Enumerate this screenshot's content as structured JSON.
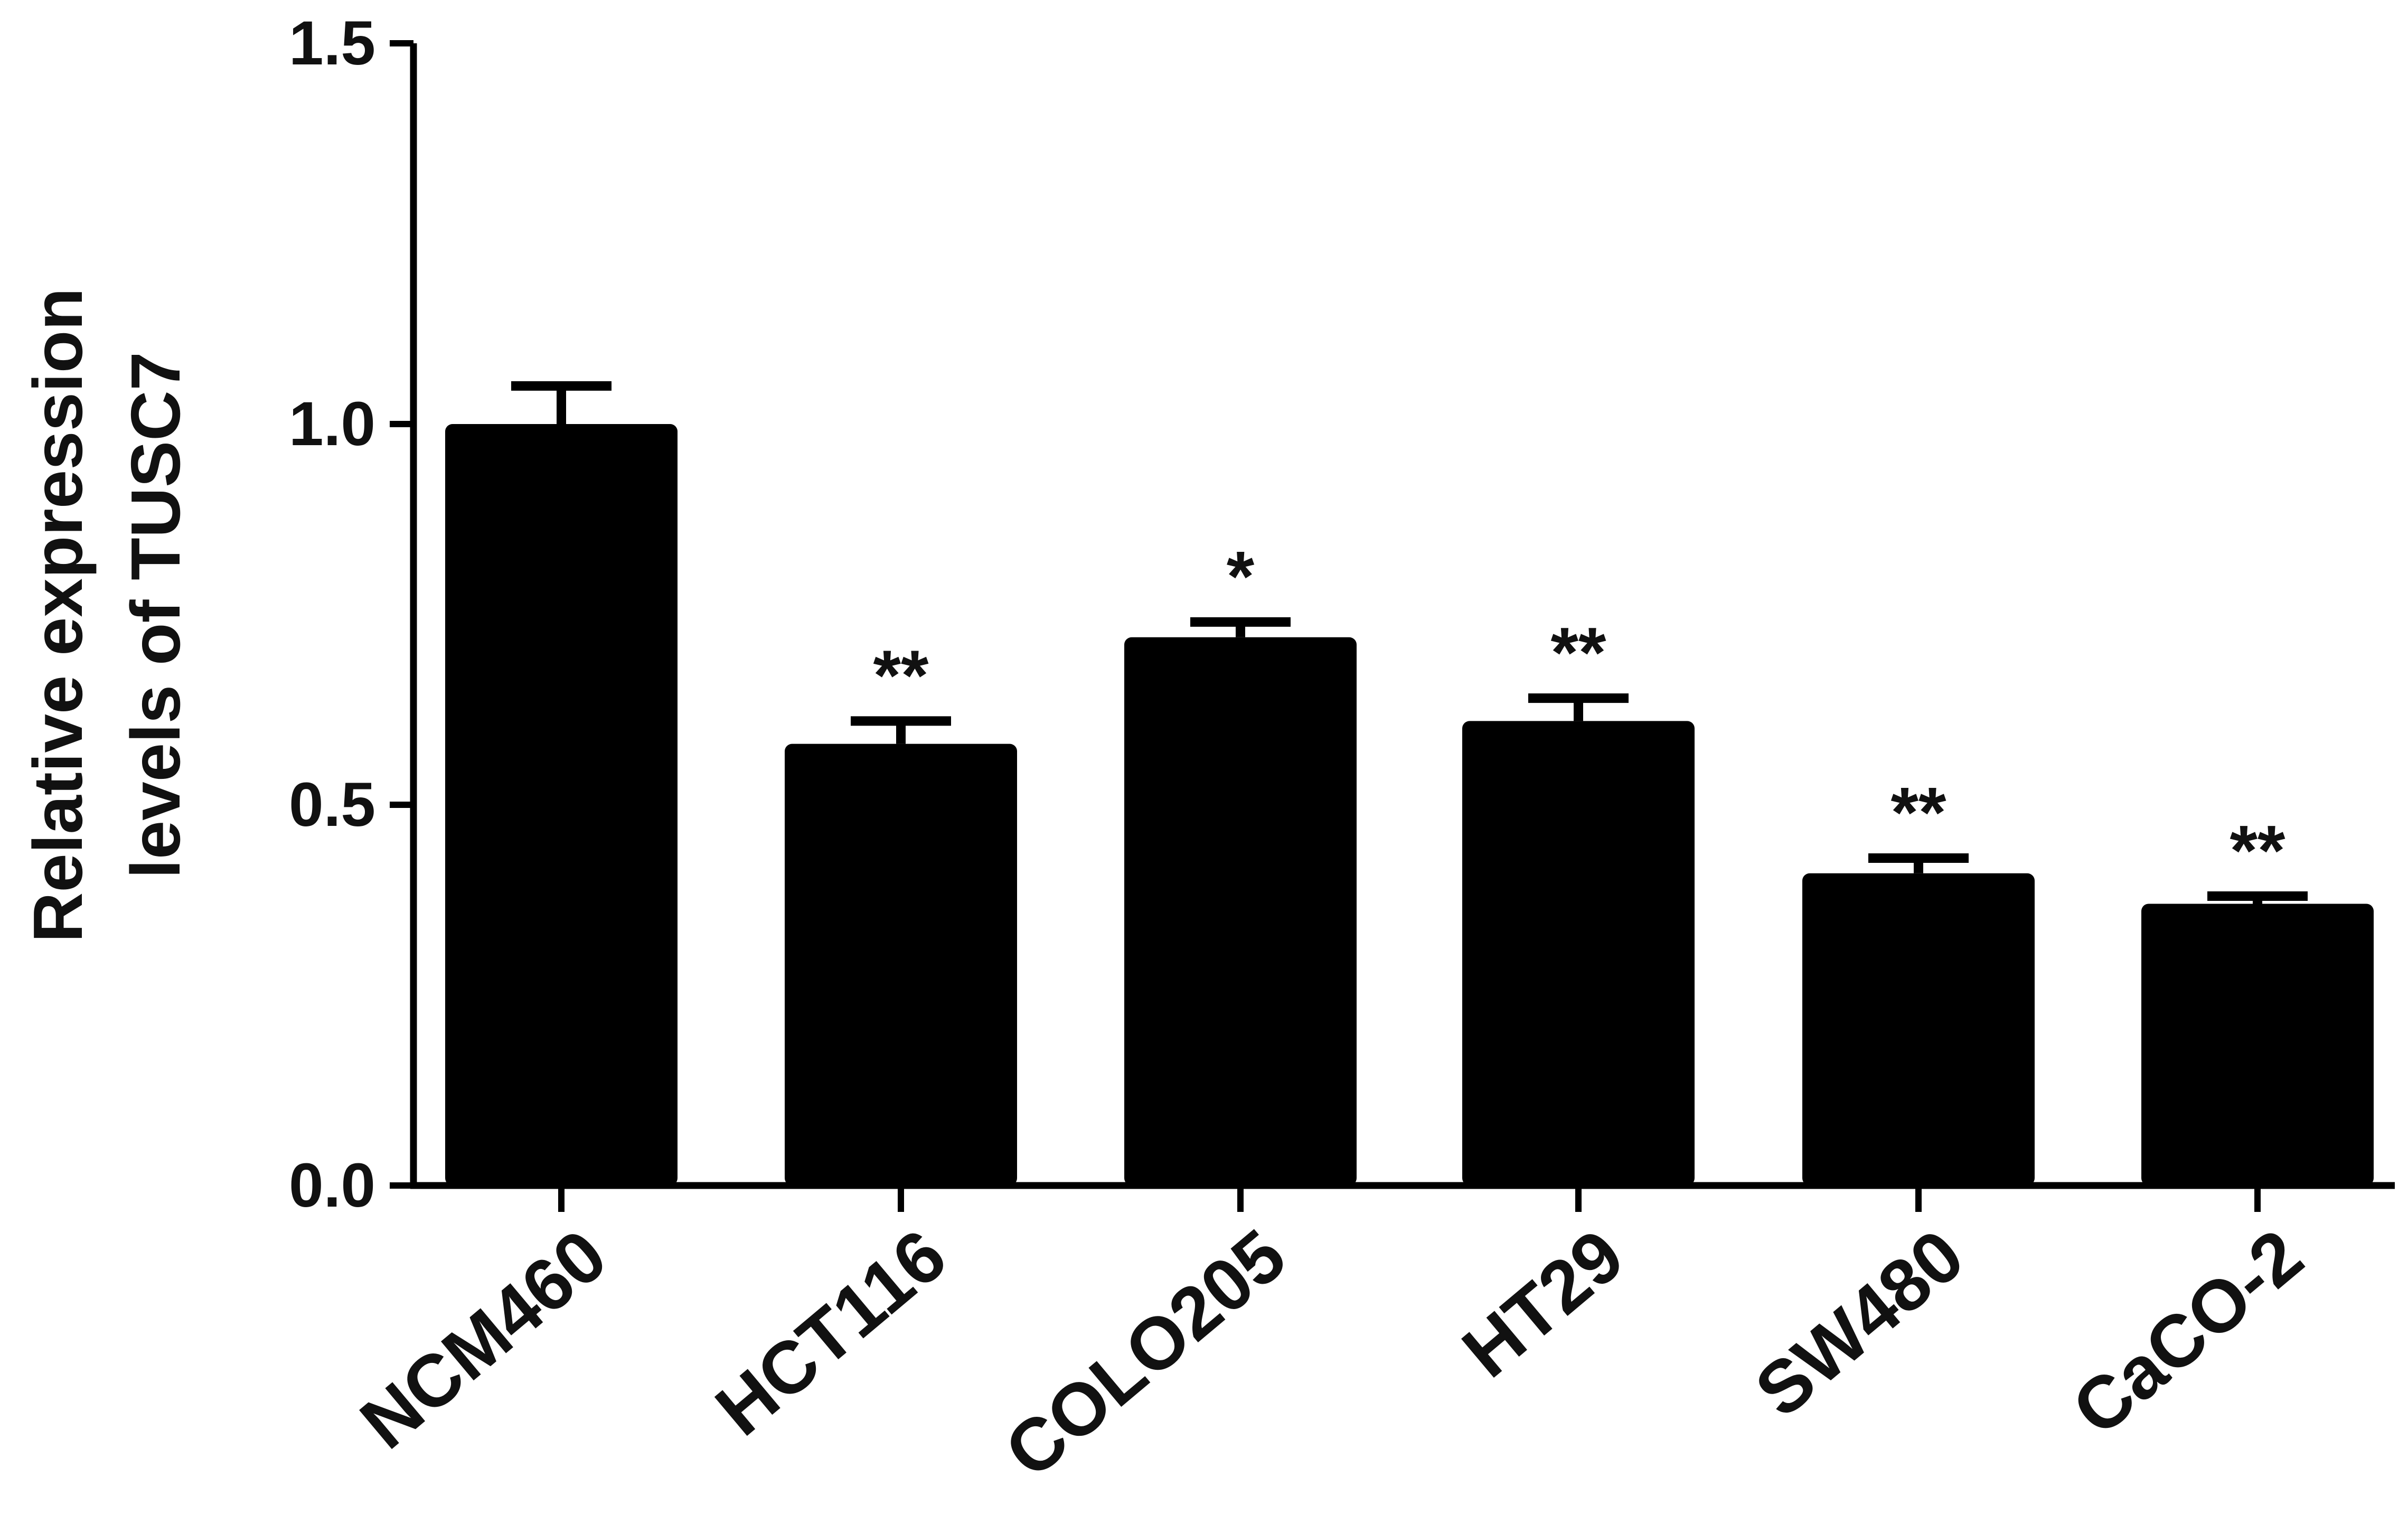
{
  "chart_data": {
    "type": "bar",
    "title": "",
    "xlabel": "",
    "ylabel_lines": [
      "Relative expression",
      "levels of TUSC7"
    ],
    "ylim": [
      0,
      1.5
    ],
    "yticks": [
      "0.0",
      "0.5",
      "1.0",
      "1.5"
    ],
    "ytick_values": [
      0,
      0.5,
      1.0,
      1.5
    ],
    "categories": [
      "NCM460",
      "HCT116",
      "COLO205",
      "HT29",
      "SW480",
      "CaCO-2"
    ],
    "values": [
      1.0,
      0.58,
      0.72,
      0.61,
      0.41,
      0.37
    ],
    "error_upper": [
      0.05,
      0.03,
      0.02,
      0.03,
      0.02,
      0.01
    ],
    "significance": [
      "",
      "**",
      "*",
      "**",
      "**",
      "**"
    ],
    "bar_color": "#000000",
    "grid": false,
    "legend": "none"
  }
}
